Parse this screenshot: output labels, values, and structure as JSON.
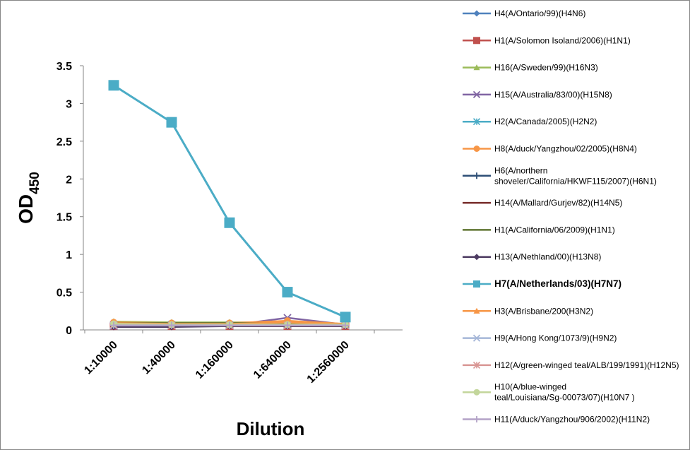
{
  "chart_data": {
    "type": "line",
    "title": "",
    "xlabel": "Dilution",
    "ylabel": "OD",
    "ylabel_subscript": "450",
    "categories": [
      "1:10000",
      "1:40000",
      "1:160000",
      "1:640000",
      "1:2560000"
    ],
    "ylim": [
      0,
      3.5
    ],
    "yticks": [
      "0",
      "0.5",
      "1",
      "1.5",
      "2",
      "2.5",
      "3",
      "3.5"
    ],
    "grid": false,
    "legend_position": "right",
    "series": [
      {
        "name": "H4(A/Ontario/99)(H4N6)",
        "color": "#4F81BD",
        "marker": "diamond",
        "values": [
          0.08,
          0.07,
          0.07,
          0.08,
          0.07
        ]
      },
      {
        "name": "H1(A/Solomon Isoland/2006)(H1N1)",
        "color": "#C0504D",
        "marker": "square",
        "values": [
          0.05,
          0.05,
          0.05,
          0.05,
          0.05
        ]
      },
      {
        "name": "H16(A/Sweden/99)(H16N3)",
        "color": "#9BBB59",
        "marker": "triangle",
        "values": [
          0.11,
          0.1,
          0.1,
          0.1,
          0.08
        ]
      },
      {
        "name": "H15(A/Australia/83/00)(H15N8)",
        "color": "#8064A2",
        "marker": "x",
        "values": [
          0.05,
          0.06,
          0.06,
          0.16,
          0.07
        ]
      },
      {
        "name": "H2(A/Canada/2005)(H2N2)",
        "color": "#4BACC6",
        "marker": "star",
        "values": [
          0.07,
          0.07,
          0.07,
          0.07,
          0.07
        ]
      },
      {
        "name": "H8(A/duck/Yangzhou/02/2005)(H8N4)",
        "color": "#F79646",
        "marker": "circle",
        "values": [
          0.1,
          0.09,
          0.09,
          0.12,
          0.08
        ]
      },
      {
        "name": "H6(A/northern shoveler/California/HKWF115/2007)(H6N1)",
        "color": "#2C4D75",
        "marker": "plus",
        "values": [
          0.06,
          0.06,
          0.06,
          0.06,
          0.06
        ]
      },
      {
        "name": "H14(A/Mallard/Gurjev/82)(H14N5)",
        "color": "#772C2A",
        "marker": "none",
        "values": [
          0.05,
          0.05,
          0.05,
          0.05,
          0.05
        ]
      },
      {
        "name": "H1(A/California/06/2009)(H1N1)",
        "color": "#5F7530",
        "marker": "none",
        "values": [
          0.09,
          0.09,
          0.09,
          0.09,
          0.08
        ]
      },
      {
        "name": "H13(A/Nethland/00)(H13N8)",
        "color": "#4D3B62",
        "marker": "diamond",
        "values": [
          0.04,
          0.04,
          0.05,
          0.05,
          0.05
        ]
      },
      {
        "name": "H7(A/Netherlands/03)(H7N7)",
        "color": "#4BACC6",
        "marker": "square",
        "bold": true,
        "values": [
          3.24,
          2.75,
          1.42,
          0.5,
          0.17
        ]
      },
      {
        "name": "H3(A/Brisbane/200(H3N2)",
        "color": "#F79646",
        "marker": "triangle",
        "values": [
          0.09,
          0.08,
          0.08,
          0.1,
          0.08
        ]
      },
      {
        "name": "H9(A/Hong Kong/1073/9)(H9N2)",
        "color": "#A5B6D8",
        "marker": "x",
        "values": [
          0.06,
          0.06,
          0.06,
          0.06,
          0.06
        ]
      },
      {
        "name": "H12(A/green-winged teal/ALB/199/1991)(H12N5)",
        "color": "#D99694",
        "marker": "star",
        "values": [
          0.07,
          0.06,
          0.06,
          0.06,
          0.06
        ]
      },
      {
        "name": "H10(A/blue-winged teal/Louisiana/Sg-00073/07)(H10N7 )",
        "color": "#C3D69B",
        "marker": "circle",
        "values": [
          0.08,
          0.07,
          0.07,
          0.07,
          0.07
        ]
      },
      {
        "name": "H11(A/duck/Yangzhou/906/2002)(H11N2)",
        "color": "#B3A2C7",
        "marker": "plus",
        "values": [
          0.06,
          0.06,
          0.06,
          0.06,
          0.06
        ]
      }
    ]
  }
}
